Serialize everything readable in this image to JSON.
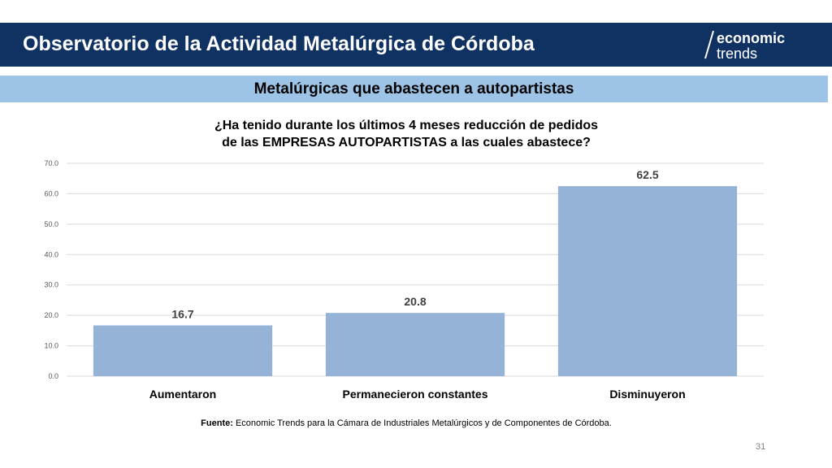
{
  "header": {
    "title": "Observatorio de la Actividad Metalúrgica de Córdoba",
    "logo_line1": "economic",
    "logo_line2": "trends",
    "background": "#0f3263"
  },
  "subheader": {
    "title": "Metalúrgicas que abastecen a autopartistas",
    "background": "#9dc3e6"
  },
  "chart_data": {
    "type": "bar",
    "title_lines": [
      "¿Ha tenido durante los últimos 4 meses reducción de pedidos",
      "de las EMPRESAS AUTOPARTISTAS a las cuales abastece?"
    ],
    "categories": [
      "Aumentaron",
      "Permanecieron constantes",
      "Disminuyeron"
    ],
    "values": [
      16.7,
      20.8,
      62.5
    ],
    "value_labels": [
      "16.7",
      "20.8",
      "62.5"
    ],
    "ylim": [
      0,
      70
    ],
    "yticks": [
      "0.0",
      "10.0",
      "20.0",
      "30.0",
      "40.0",
      "50.0",
      "60.0",
      "70.0"
    ],
    "grid": true,
    "bar_color": "#95b3d7",
    "xlabel": "",
    "ylabel": ""
  },
  "footer": {
    "source_label": "Fuente:",
    "source_text": " Economic Trends para la Cámara de Industriales Metalúrgicos y de Componentes de Córdoba.",
    "page_number": "31"
  }
}
